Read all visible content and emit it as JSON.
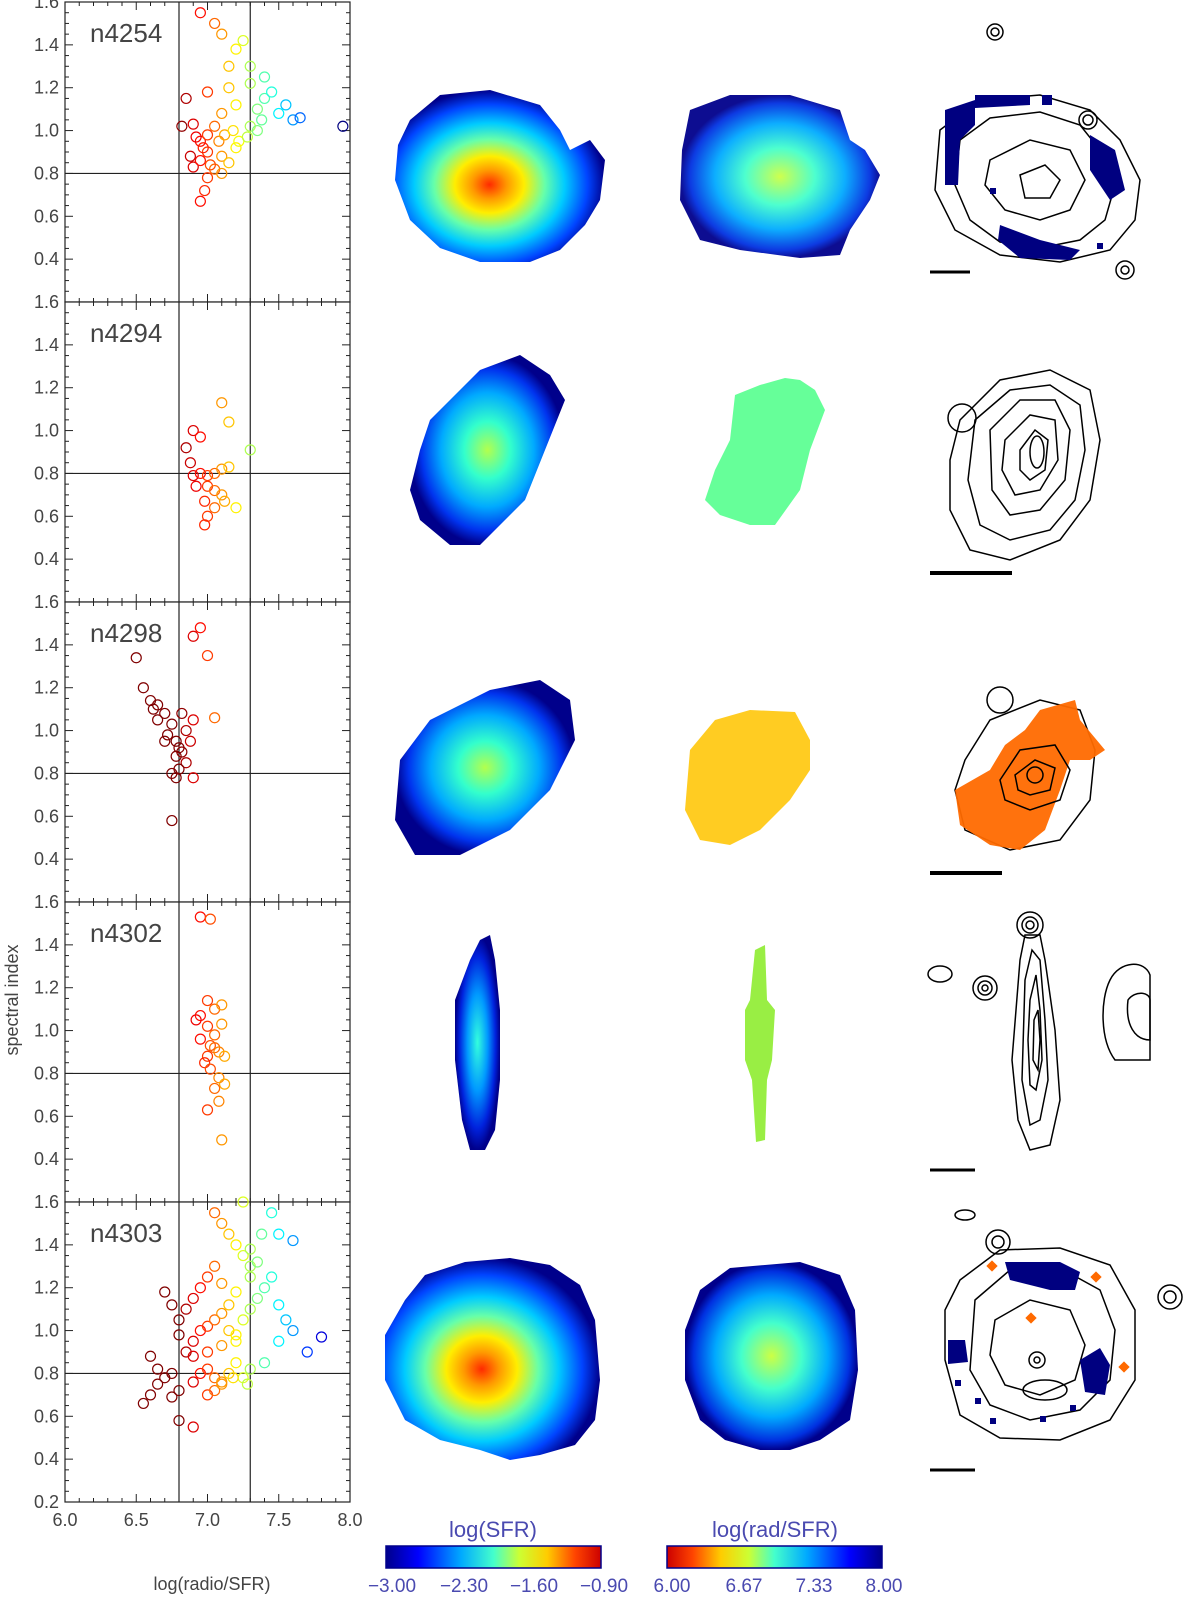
{
  "chart_data": {
    "type": "scatter",
    "xlabel": "log(radio/SFR)",
    "ylabel": "spectral index",
    "xlim": [
      6.0,
      8.0
    ],
    "ylim": [
      0.2,
      1.6
    ],
    "x_ticks": [
      "6.0",
      "6.5",
      "7.0",
      "7.5",
      "8.0"
    ],
    "y_ticks": [
      "0.2",
      "0.4",
      "0.6",
      "0.8",
      "1.0",
      "1.2",
      "1.4",
      "1.6"
    ],
    "reference_lines": {
      "x": [
        6.8,
        7.3
      ],
      "y": [
        0.8
      ]
    },
    "panels": [
      {
        "galaxy": "n4254",
        "points": [
          [
            6.85,
            1.15
          ],
          [
            6.9,
            1.03
          ],
          [
            6.95,
            0.95
          ],
          [
            7.0,
            0.9
          ],
          [
            7.05,
            1.02
          ],
          [
            7.1,
            0.88
          ],
          [
            7.0,
            0.78
          ],
          [
            6.9,
            0.83
          ],
          [
            6.95,
            0.86
          ],
          [
            7.05,
            0.82
          ],
          [
            7.15,
            0.85
          ],
          [
            7.2,
            0.92
          ],
          [
            7.0,
            0.98
          ],
          [
            7.1,
            1.08
          ],
          [
            7.2,
            1.12
          ],
          [
            7.3,
            1.02
          ],
          [
            7.35,
            1.1
          ],
          [
            7.4,
            1.15
          ],
          [
            7.5,
            1.08
          ],
          [
            7.55,
            1.12
          ],
          [
            7.6,
            1.05
          ],
          [
            7.3,
            1.22
          ],
          [
            7.4,
            1.25
          ],
          [
            7.2,
            1.38
          ],
          [
            7.1,
            1.45
          ],
          [
            7.25,
            1.42
          ],
          [
            6.95,
            1.55
          ],
          [
            7.05,
            1.5
          ],
          [
            7.15,
            1.2
          ],
          [
            7.0,
            1.18
          ],
          [
            6.92,
            0.97
          ],
          [
            7.08,
            0.95
          ],
          [
            7.12,
            0.98
          ],
          [
            7.18,
            1.0
          ],
          [
            7.22,
            0.95
          ],
          [
            7.28,
            0.97
          ],
          [
            6.88,
            0.88
          ],
          [
            6.98,
            0.72
          ],
          [
            6.95,
            0.67
          ],
          [
            7.1,
            0.8
          ],
          [
            7.02,
            0.84
          ],
          [
            6.97,
            0.92
          ],
          [
            7.15,
            1.3
          ],
          [
            7.38,
            1.05
          ],
          [
            7.45,
            1.18
          ],
          [
            7.65,
            1.06
          ],
          [
            7.95,
            1.02
          ],
          [
            7.3,
            1.3
          ],
          [
            7.35,
            1.0
          ],
          [
            6.82,
            1.02
          ]
        ]
      },
      {
        "galaxy": "n4294",
        "points": [
          [
            6.85,
            0.92
          ],
          [
            6.9,
            1.0
          ],
          [
            6.95,
            0.97
          ],
          [
            7.1,
            1.13
          ],
          [
            7.15,
            1.04
          ],
          [
            7.3,
            0.91
          ],
          [
            6.88,
            0.85
          ],
          [
            6.9,
            0.79
          ],
          [
            6.95,
            0.8
          ],
          [
            7.0,
            0.79
          ],
          [
            7.05,
            0.8
          ],
          [
            7.1,
            0.82
          ],
          [
            7.15,
            0.83
          ],
          [
            7.0,
            0.74
          ],
          [
            7.05,
            0.72
          ],
          [
            7.1,
            0.7
          ],
          [
            7.12,
            0.67
          ],
          [
            6.98,
            0.67
          ],
          [
            7.05,
            0.64
          ],
          [
            7.2,
            0.64
          ],
          [
            7.0,
            0.6
          ],
          [
            6.98,
            0.56
          ],
          [
            6.92,
            0.74
          ]
        ]
      },
      {
        "galaxy": "n4298",
        "points": [
          [
            6.5,
            1.34
          ],
          [
            6.55,
            1.2
          ],
          [
            6.6,
            1.14
          ],
          [
            6.62,
            1.1
          ],
          [
            6.65,
            1.05
          ],
          [
            6.7,
            1.08
          ],
          [
            6.75,
            1.03
          ],
          [
            6.72,
            0.98
          ],
          [
            6.78,
            0.95
          ],
          [
            6.8,
            0.92
          ],
          [
            6.82,
            0.9
          ],
          [
            6.85,
            0.85
          ],
          [
            6.8,
            0.82
          ],
          [
            6.78,
            0.78
          ],
          [
            6.75,
            0.8
          ],
          [
            6.9,
            0.78
          ],
          [
            6.85,
            1.0
          ],
          [
            6.9,
            1.05
          ],
          [
            6.95,
            1.48
          ],
          [
            6.9,
            1.44
          ],
          [
            7.0,
            1.35
          ],
          [
            7.05,
            1.06
          ],
          [
            6.88,
            0.95
          ],
          [
            6.82,
            1.08
          ],
          [
            6.75,
            0.58
          ],
          [
            6.78,
            0.88
          ],
          [
            6.7,
            0.95
          ],
          [
            6.65,
            1.12
          ]
        ]
      },
      {
        "galaxy": "n4302",
        "points": [
          [
            6.95,
            1.53
          ],
          [
            7.02,
            1.52
          ],
          [
            7.0,
            1.14
          ],
          [
            7.05,
            1.1
          ],
          [
            7.1,
            1.12
          ],
          [
            7.1,
            1.03
          ],
          [
            7.05,
            0.98
          ],
          [
            7.02,
            0.93
          ],
          [
            6.95,
            0.96
          ],
          [
            6.92,
            1.05
          ],
          [
            6.95,
            1.07
          ],
          [
            7.0,
            1.02
          ],
          [
            7.05,
            0.92
          ],
          [
            7.0,
            0.88
          ],
          [
            7.08,
            0.9
          ],
          [
            7.12,
            0.88
          ],
          [
            6.98,
            0.85
          ],
          [
            7.02,
            0.82
          ],
          [
            7.08,
            0.78
          ],
          [
            7.12,
            0.75
          ],
          [
            7.05,
            0.73
          ],
          [
            7.08,
            0.67
          ],
          [
            7.0,
            0.63
          ],
          [
            7.1,
            0.49
          ]
        ]
      },
      {
        "galaxy": "n4303",
        "points": [
          [
            6.55,
            0.66
          ],
          [
            6.6,
            0.7
          ],
          [
            6.65,
            0.75
          ],
          [
            6.7,
            0.78
          ],
          [
            6.75,
            0.8
          ],
          [
            6.8,
            0.72
          ],
          [
            6.9,
            0.76
          ],
          [
            6.95,
            0.8
          ],
          [
            7.0,
            0.82
          ],
          [
            7.05,
            0.78
          ],
          [
            7.1,
            0.76
          ],
          [
            7.15,
            0.8
          ],
          [
            7.2,
            0.85
          ],
          [
            7.25,
            0.78
          ],
          [
            7.3,
            0.82
          ],
          [
            6.85,
            0.9
          ],
          [
            6.9,
            0.95
          ],
          [
            6.95,
            1.0
          ],
          [
            7.0,
            1.02
          ],
          [
            7.05,
            1.05
          ],
          [
            7.1,
            1.08
          ],
          [
            7.15,
            1.0
          ],
          [
            7.2,
            0.98
          ],
          [
            7.25,
            1.05
          ],
          [
            7.3,
            1.1
          ],
          [
            7.35,
            1.15
          ],
          [
            7.4,
            1.2
          ],
          [
            7.45,
            1.25
          ],
          [
            7.5,
            1.12
          ],
          [
            7.55,
            1.05
          ],
          [
            7.6,
            1.0
          ],
          [
            7.7,
            0.9
          ],
          [
            7.8,
            0.97
          ],
          [
            7.3,
            1.3
          ],
          [
            7.25,
            1.35
          ],
          [
            7.2,
            1.4
          ],
          [
            7.15,
            1.45
          ],
          [
            7.1,
            1.5
          ],
          [
            7.05,
            1.55
          ],
          [
            7.5,
            1.45
          ],
          [
            7.45,
            1.55
          ],
          [
            7.6,
            1.42
          ],
          [
            6.8,
            1.05
          ],
          [
            6.85,
            1.1
          ],
          [
            6.9,
            1.15
          ],
          [
            6.95,
            1.2
          ],
          [
            7.0,
            1.25
          ],
          [
            7.05,
            1.3
          ],
          [
            7.1,
            1.22
          ],
          [
            7.2,
            1.18
          ],
          [
            7.3,
            1.25
          ],
          [
            7.35,
            1.32
          ],
          [
            6.7,
            1.18
          ],
          [
            6.75,
            1.12
          ],
          [
            6.8,
            0.98
          ],
          [
            6.9,
            0.88
          ],
          [
            7.0,
            0.9
          ],
          [
            7.1,
            0.93
          ],
          [
            7.2,
            0.95
          ],
          [
            7.15,
            1.12
          ],
          [
            6.6,
            0.88
          ],
          [
            6.65,
            0.82
          ],
          [
            6.75,
            0.69
          ],
          [
            6.8,
            0.58
          ],
          [
            6.9,
            0.55
          ],
          [
            7.0,
            0.7
          ],
          [
            7.05,
            0.72
          ],
          [
            7.1,
            0.75
          ],
          [
            7.18,
            0.78
          ],
          [
            7.28,
            0.75
          ],
          [
            7.4,
            0.85
          ],
          [
            7.5,
            0.95
          ],
          [
            7.3,
            1.38
          ],
          [
            7.38,
            1.45
          ],
          [
            7.25,
            1.6
          ]
        ]
      }
    ],
    "colorbars": [
      {
        "title": "log(SFR)",
        "ticks": [
          "−3.00",
          "−2.30",
          "−1.60",
          "−0.90"
        ],
        "colormap": "jet"
      },
      {
        "title": "log(rad/SFR)",
        "ticks": [
          "6.00",
          "6.67",
          "7.33",
          "8.00"
        ],
        "colormap": "jet-reversed"
      }
    ]
  }
}
